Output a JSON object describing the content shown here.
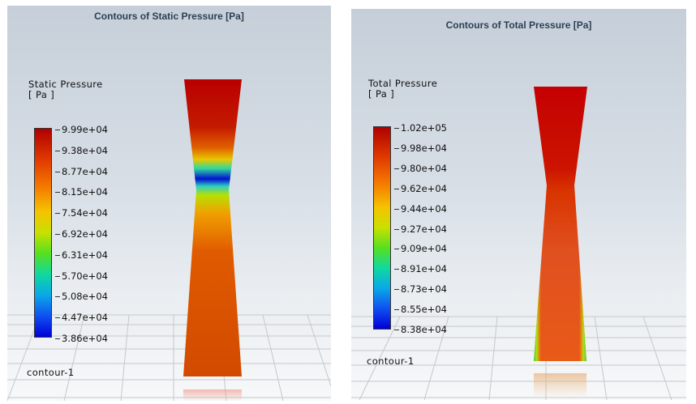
{
  "panels": [
    {
      "title": "Contours of Static Pressure [Pa]",
      "legend_title_line1": "Static Pressure",
      "legend_title_line2": "[ Pa ]",
      "legend_ticks": [
        "9.99e+04",
        "9.38e+04",
        "8.77e+04",
        "8.15e+04",
        "7.54e+04",
        "6.92e+04",
        "6.31e+04",
        "5.70e+04",
        "5.08e+04",
        "4.47e+04",
        "3.86e+04"
      ],
      "contour_label": "contour-1"
    },
    {
      "title": "Contours of Total Pressure [Pa]",
      "legend_title_line1": "Total Pressure",
      "legend_title_line2": "[ Pa ]",
      "legend_ticks": [
        "1.02e+05",
        "9.98e+04",
        "9.80e+04",
        "9.62e+04",
        "9.44e+04",
        "9.27e+04",
        "9.09e+04",
        "8.91e+04",
        "8.73e+04",
        "8.55e+04",
        "8.38e+04"
      ],
      "contour_label": "contour-1"
    }
  ],
  "colormap": [
    "#b00000",
    "#e03a00",
    "#f47a00",
    "#f5c400",
    "#c8e000",
    "#55e020",
    "#10d8a0",
    "#0aa8e8",
    "#1050f0",
    "#0000d8"
  ]
}
